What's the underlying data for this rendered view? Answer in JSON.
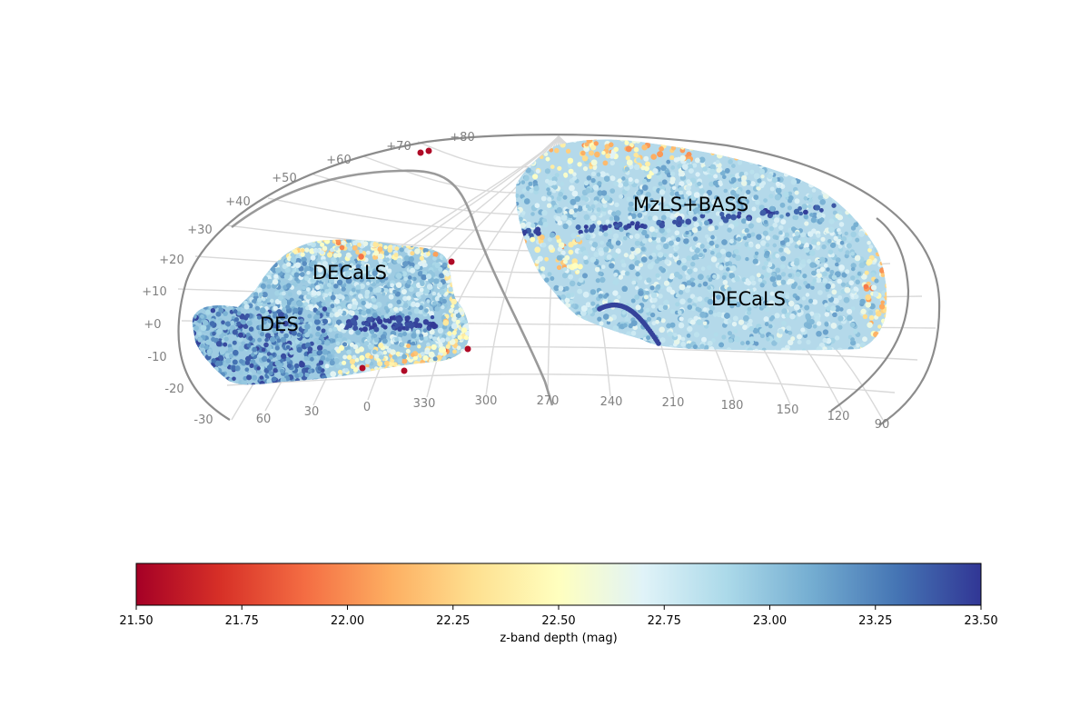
{
  "map": {
    "dec_labels": [
      "+80",
      "+70",
      "+60",
      "+50",
      "+40",
      "+30",
      "+20",
      "+10",
      "+0",
      "-10",
      "-20",
      "-30"
    ],
    "ra_labels": [
      "60",
      "30",
      "0",
      "330",
      "300",
      "270",
      "240",
      "210",
      "180",
      "150",
      "120",
      "90"
    ],
    "survey_labels": [
      "DECaLS",
      "DES",
      "MzLS+BASS",
      "DECaLS"
    ],
    "colors": {
      "frame": "#8c8c8c",
      "grid": "#d9d9d9",
      "galactic_plane": "#9a9a9a",
      "tick_text": "#808080"
    }
  },
  "colorbar": {
    "min": 21.5,
    "max": 23.5,
    "colormap": "RdYlBu",
    "tick_labels": [
      "21.50",
      "21.75",
      "22.00",
      "22.25",
      "22.50",
      "22.75",
      "23.00",
      "23.25",
      "23.50"
    ],
    "label": "z-band depth (mag)",
    "stops": [
      "#a50026",
      "#d73027",
      "#f46d43",
      "#fdae61",
      "#fee090",
      "#ffffbf",
      "#e0f3f8",
      "#abd9e9",
      "#74add1",
      "#4575b4",
      "#313695"
    ]
  }
}
